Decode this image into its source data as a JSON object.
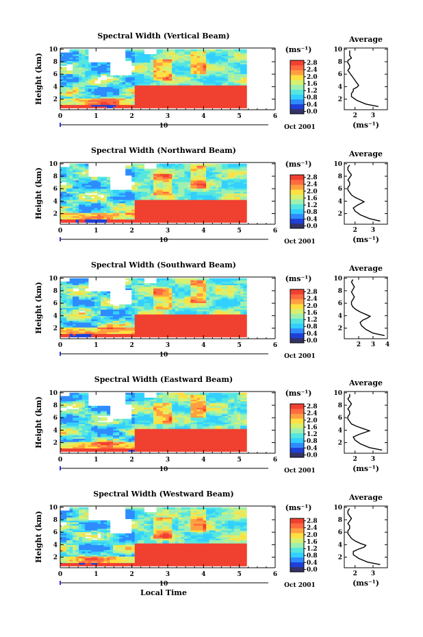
{
  "chart_data": [
    {
      "type": "heatmap",
      "title": "Spectral Width (Vertical Beam)",
      "xlabel": "",
      "ylabel": "Height (km)",
      "xlim": [
        0,
        6
      ],
      "ylim": [
        0.3,
        10.2
      ],
      "x_ticks": [
        "0",
        "1",
        "2",
        "3",
        "4",
        "5",
        "6"
      ],
      "y_ticks": [
        "2",
        "4",
        "6",
        "8",
        "10"
      ],
      "date_bar": {
        "label": "10",
        "right_label": "Oct 2001"
      },
      "data_end_x": 5.2,
      "colorbar": {
        "unit": "(ms⁻¹)",
        "min": 0.0,
        "max": 2.8,
        "ticks": [
          "0.0",
          "0.4",
          "0.8",
          "1.2",
          "1.6",
          "2.0",
          "2.4",
          "2.8"
        ]
      },
      "profile": {
        "title": "Average",
        "xlabel": "(ms⁻¹)",
        "xlim": [
          1.4,
          3.8
        ],
        "x_ticks": [
          "2",
          "3"
        ],
        "y_ticks": [
          "2",
          "4",
          "6",
          "8",
          "10"
        ],
        "x": [
          3.3,
          2.6,
          2.1,
          1.8,
          1.8,
          1.9,
          1.9,
          2.1,
          2.2,
          2.1,
          2.0,
          1.9,
          1.8,
          1.7,
          1.6,
          1.7,
          1.7,
          1.6,
          1.6,
          1.8,
          1.7,
          1.7,
          1.7
        ],
        "y": [
          0.8,
          1.2,
          1.8,
          2.4,
          2.9,
          3.3,
          3.6,
          3.9,
          4.2,
          4.6,
          5.0,
          5.4,
          5.8,
          6.2,
          6.6,
          7.0,
          7.4,
          7.8,
          8.2,
          8.6,
          9.0,
          9.4,
          9.8
        ]
      }
    },
    {
      "type": "heatmap",
      "title": "Spectral Width (Northward Beam)",
      "xlabel": "",
      "ylabel": "Height (km)",
      "xlim": [
        0,
        6
      ],
      "ylim": [
        0.3,
        10.2
      ],
      "x_ticks": [
        "0",
        "1",
        "2",
        "3",
        "4",
        "5",
        "6"
      ],
      "y_ticks": [
        "2",
        "4",
        "6",
        "8",
        "10"
      ],
      "date_bar": {
        "label": "10",
        "right_label": "Oct 2001"
      },
      "data_end_x": 5.2,
      "colorbar": {
        "unit": "(ms⁻¹)",
        "min": 0.0,
        "max": 2.8,
        "ticks": [
          "0.0",
          "0.4",
          "0.8",
          "1.2",
          "1.6",
          "2.0",
          "2.4",
          "2.8"
        ]
      },
      "profile": {
        "title": "Average",
        "xlabel": "(ms⁻¹)",
        "xlim": [
          1.4,
          3.8
        ],
        "x_ticks": [
          "2",
          "3"
        ],
        "y_ticks": [
          "2",
          "4",
          "6",
          "8",
          "10"
        ],
        "x": [
          3.4,
          2.8,
          2.3,
          2.0,
          1.9,
          2.1,
          2.3,
          2.5,
          2.3,
          2.0,
          1.8,
          1.7,
          1.6,
          1.6,
          1.7,
          1.7,
          1.6,
          1.7,
          1.8,
          1.7,
          1.6,
          1.6,
          1.7
        ],
        "y": [
          0.8,
          1.2,
          1.8,
          2.4,
          2.9,
          3.3,
          3.6,
          3.9,
          4.2,
          4.6,
          5.0,
          5.4,
          5.8,
          6.2,
          6.6,
          7.0,
          7.4,
          7.8,
          8.2,
          8.6,
          9.0,
          9.4,
          9.8
        ]
      }
    },
    {
      "type": "heatmap",
      "title": "Spectral Width (Southward Beam)",
      "xlabel": "",
      "ylabel": "Height (km)",
      "xlim": [
        0,
        6
      ],
      "ylim": [
        0.3,
        10.2
      ],
      "x_ticks": [
        "0",
        "1",
        "2",
        "3",
        "4",
        "5",
        "6"
      ],
      "y_ticks": [
        "2",
        "4",
        "6",
        "8",
        "10"
      ],
      "date_bar": {
        "label": "10",
        "right_label": "Oct 2001"
      },
      "data_end_x": 5.2,
      "colorbar": {
        "unit": "(ms⁻¹)",
        "min": 0.0,
        "max": 2.8,
        "ticks": [
          "0.0",
          "0.4",
          "0.8",
          "1.2",
          "1.6",
          "2.0",
          "2.4",
          "2.8"
        ]
      },
      "profile": {
        "title": "Average",
        "xlabel": "",
        "xlim": [
          1.0,
          4.0
        ],
        "x_ticks": [
          "2",
          "3",
          "4"
        ],
        "y_ticks": [
          "2",
          "4",
          "6",
          "8",
          "10"
        ],
        "x": [
          3.8,
          3.0,
          2.5,
          2.2,
          2.1,
          2.3,
          2.6,
          2.8,
          2.5,
          2.1,
          1.8,
          1.6,
          1.5,
          1.5,
          1.6,
          1.7,
          1.6,
          1.5,
          1.6,
          1.7,
          1.6,
          1.5,
          1.6
        ],
        "y": [
          0.8,
          1.2,
          1.8,
          2.4,
          2.9,
          3.3,
          3.6,
          3.9,
          4.2,
          4.6,
          5.0,
          5.4,
          5.8,
          6.2,
          6.6,
          7.0,
          7.4,
          7.8,
          8.2,
          8.6,
          9.0,
          9.4,
          9.8
        ]
      }
    },
    {
      "type": "heatmap",
      "title": "Spectral Width (Eastward Beam)",
      "xlabel": "",
      "ylabel": "Height (km)",
      "xlim": [
        0,
        6
      ],
      "ylim": [
        0.3,
        10.2
      ],
      "x_ticks": [
        "0",
        "1",
        "2",
        "3",
        "4",
        "5",
        "6"
      ],
      "y_ticks": [
        "2",
        "4",
        "6",
        "8",
        "10"
      ],
      "date_bar": {
        "label": "10",
        "right_label": "Oct 2001"
      },
      "data_end_x": 5.2,
      "colorbar": {
        "unit": "(ms⁻¹)",
        "min": 0.0,
        "max": 2.8,
        "ticks": [
          "0.0",
          "0.4",
          "0.8",
          "1.2",
          "1.6",
          "2.0",
          "2.4",
          "2.8"
        ]
      },
      "profile": {
        "title": "Average",
        "xlabel": "(ms⁻¹)",
        "xlim": [
          1.4,
          3.8
        ],
        "x_ticks": [
          "2",
          "3"
        ],
        "y_ticks": [
          "2",
          "4",
          "6",
          "8",
          "10"
        ],
        "x": [
          3.5,
          2.8,
          2.3,
          2.0,
          1.9,
          2.2,
          2.5,
          2.8,
          2.5,
          2.1,
          1.8,
          1.7,
          1.6,
          1.6,
          1.7,
          1.7,
          1.6,
          1.7,
          1.8,
          1.7,
          1.6,
          1.7,
          1.7
        ],
        "y": [
          0.8,
          1.2,
          1.8,
          2.4,
          2.9,
          3.3,
          3.6,
          3.9,
          4.2,
          4.6,
          5.0,
          5.4,
          5.8,
          6.2,
          6.6,
          7.0,
          7.4,
          7.8,
          8.2,
          8.6,
          9.0,
          9.4,
          9.8
        ]
      }
    },
    {
      "type": "heatmap",
      "title": "Spectral Width (Westward Beam)",
      "xlabel": "Local Time",
      "ylabel": "Height (km)",
      "xlim": [
        0,
        6
      ],
      "ylim": [
        0.3,
        10.2
      ],
      "x_ticks": [
        "0",
        "1",
        "2",
        "3",
        "4",
        "5",
        "6"
      ],
      "y_ticks": [
        "2",
        "4",
        "6",
        "8",
        "10"
      ],
      "date_bar": {
        "label": "10",
        "right_label": "Oct 2001"
      },
      "data_end_x": 5.2,
      "colorbar": {
        "unit": "(ms⁻¹)",
        "min": 0.0,
        "max": 2.8,
        "ticks": [
          "0.0",
          "0.4",
          "0.8",
          "1.2",
          "1.6",
          "2.0",
          "2.4",
          "2.8"
        ]
      },
      "profile": {
        "title": "Average",
        "xlabel": "(ms⁻¹)",
        "xlim": [
          1.4,
          3.8
        ],
        "x_ticks": [
          "2",
          "3"
        ],
        "y_ticks": [
          "2",
          "4",
          "6",
          "8",
          "10"
        ],
        "x": [
          3.4,
          2.7,
          2.2,
          1.9,
          1.9,
          2.2,
          2.5,
          2.6,
          2.3,
          2.0,
          1.8,
          1.7,
          1.6,
          1.6,
          1.7,
          1.7,
          1.6,
          1.7,
          1.8,
          1.7,
          1.6,
          1.6,
          1.7
        ],
        "y": [
          0.8,
          1.2,
          1.8,
          2.4,
          2.9,
          3.3,
          3.6,
          3.9,
          4.2,
          4.6,
          5.0,
          5.4,
          5.8,
          6.2,
          6.6,
          7.0,
          7.4,
          7.8,
          8.2,
          8.6,
          9.0,
          9.4,
          9.8
        ]
      }
    }
  ],
  "colors": {
    "palette": [
      "#333366",
      "#1f3fd6",
      "#2e8cff",
      "#33d0ff",
      "#55e6e0",
      "#9ef0b0",
      "#d8f070",
      "#ffe040",
      "#ffa040",
      "#ff6a40",
      "#f04030"
    ],
    "high": "#f04030"
  }
}
